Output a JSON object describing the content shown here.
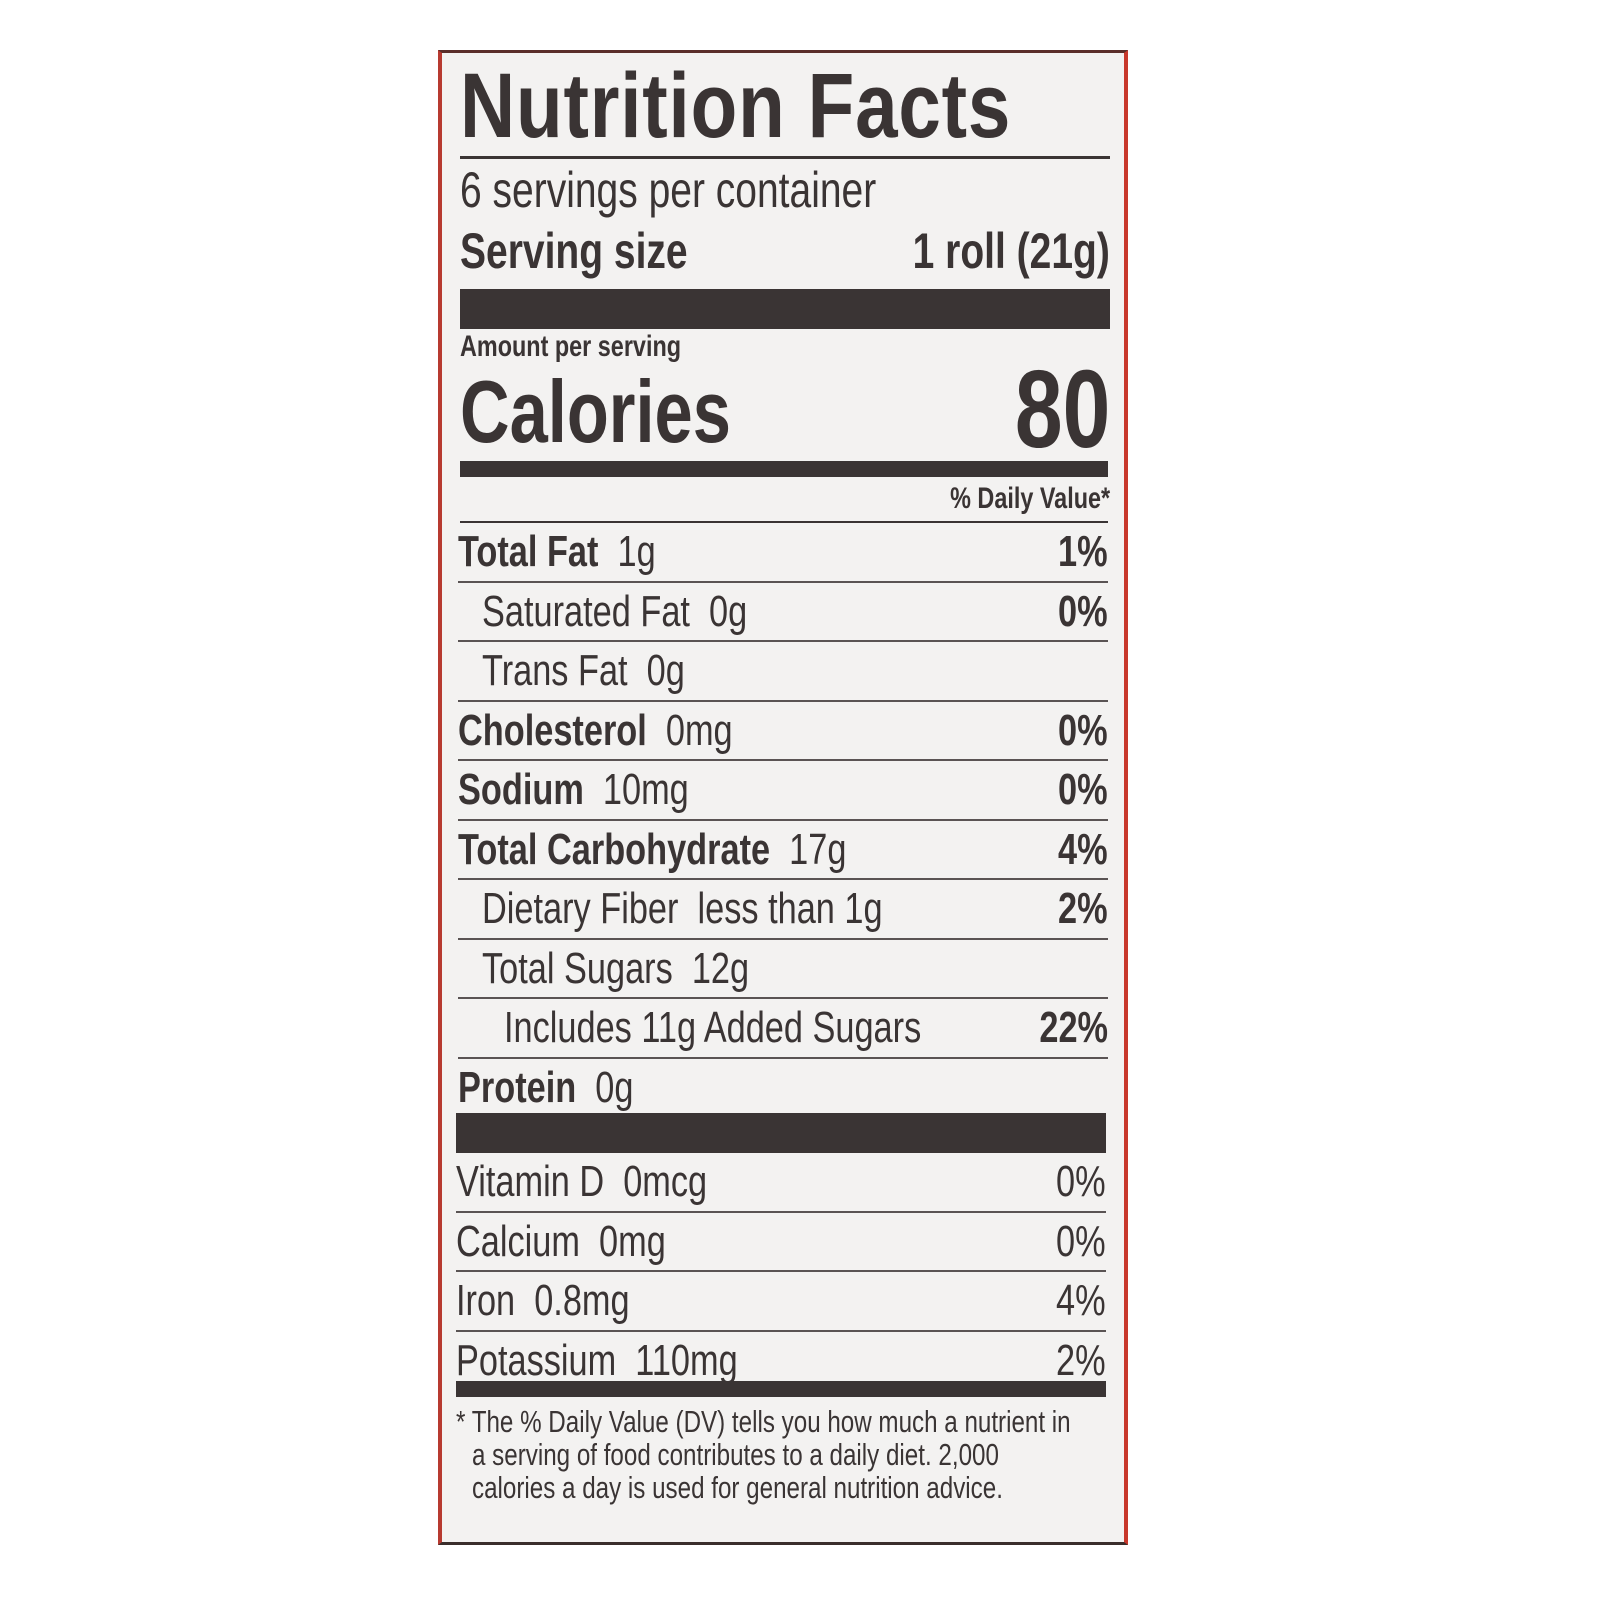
{
  "title": "Nutrition Facts",
  "servings_per_container": "6 servings per container",
  "serving_size_label": "Serving size",
  "serving_size_value": "1 roll (21g)",
  "amount_per_serving": "Amount per serving",
  "calories_label": "Calories",
  "calories_value": "80",
  "daily_value_header": "% Daily Value*",
  "nutrients": [
    {
      "name": "Total Fat",
      "amount": "1g",
      "dv": "1%"
    },
    {
      "name": "Saturated Fat",
      "amount": "0g",
      "dv": "0%"
    },
    {
      "name": "Trans Fat",
      "amount": "0g",
      "dv": ""
    },
    {
      "name": "Cholesterol",
      "amount": "0mg",
      "dv": "0%"
    },
    {
      "name": "Sodium",
      "amount": "10mg",
      "dv": "0%"
    },
    {
      "name": "Total Carbohydrate",
      "amount": "17g",
      "dv": "4%"
    },
    {
      "name": "Dietary Fiber",
      "amount": "less than 1g",
      "dv": "2%"
    },
    {
      "name": "Total Sugars",
      "amount": "12g",
      "dv": ""
    },
    {
      "name": "Includes 11g Added Sugars",
      "amount": "",
      "dv": "22%"
    },
    {
      "name": "Protein",
      "amount": "0g",
      "dv": ""
    }
  ],
  "vitamins": [
    {
      "name": "Vitamin D",
      "amount": "0mcg",
      "dv": "0%"
    },
    {
      "name": "Calcium",
      "amount": "0mg",
      "dv": "0%"
    },
    {
      "name": "Iron",
      "amount": "0.8mg",
      "dv": "4%"
    },
    {
      "name": "Potassium",
      "amount": "110mg",
      "dv": "2%"
    }
  ],
  "footnote": [
    "* The % Daily Value (DV) tells you how much a nutrient in",
    "a serving of food contributes to a daily diet. 2,000",
    "calories a day is used for general nutrition advice."
  ],
  "colors": {
    "ink": "#3a3434",
    "background": "#f3f2f1",
    "box_edge": "#c8382c"
  }
}
